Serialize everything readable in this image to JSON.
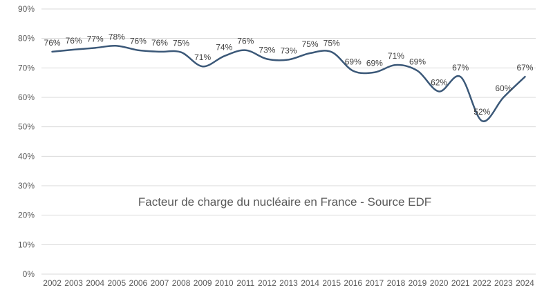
{
  "chart_data": {
    "type": "line",
    "title": "Facteur de charge du nucléaire  en France - Source EDF",
    "xlabel": "",
    "ylabel": "",
    "ylim": [
      0,
      90
    ],
    "y_ticks": [
      "0%",
      "10%",
      "20%",
      "30%",
      "40%",
      "50%",
      "60%",
      "70%",
      "80%",
      "90%"
    ],
    "grid": true,
    "categories": [
      "2002",
      "2003",
      "2004",
      "2005",
      "2006",
      "2007",
      "2008",
      "2009",
      "2010",
      "2011",
      "2012",
      "2013",
      "2014",
      "2015",
      "2016",
      "2017",
      "2018",
      "2019",
      "2020",
      "2021",
      "2022",
      "2023",
      "2024"
    ],
    "values": [
      75.5,
      76.2,
      76.8,
      77.5,
      76,
      75.5,
      75.3,
      70.5,
      74,
      76,
      73,
      72.8,
      75,
      75.4,
      69,
      68.5,
      71,
      69,
      62,
      67,
      52,
      60,
      67
    ],
    "data_labels": [
      "76%",
      "76%",
      "77%",
      "78%",
      "76%",
      "76%",
      "75%",
      "71%",
      "74%",
      "76%",
      "73%",
      "73%",
      "75%",
      "75%",
      "69%",
      "69%",
      "71%",
      "69%",
      "62%",
      "67%",
      "52%",
      "60%",
      "67%"
    ],
    "line_color": "#3b5878"
  }
}
